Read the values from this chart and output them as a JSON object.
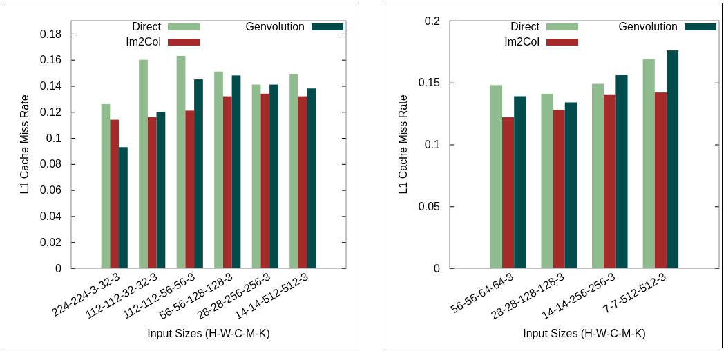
{
  "chart_data": [
    {
      "type": "bar",
      "xlabel": "Input Sizes (H-W-C-M-K)",
      "ylabel": "L1 Cache Miss Rate",
      "categories": [
        "224-224-3-32-3",
        "112-112-32-32-3",
        "112-112-56-56-3",
        "56-56-128-128-3",
        "28-28-256-256-3",
        "14-14-512-512-3"
      ],
      "series": [
        {
          "name": "Direct",
          "color": "#8fbc8f",
          "values": [
            0.126,
            0.16,
            0.163,
            0.151,
            0.141,
            0.149
          ]
        },
        {
          "name": "Im2Col",
          "color": "#a52a2a",
          "values": [
            0.114,
            0.116,
            0.121,
            0.132,
            0.134,
            0.132
          ]
        },
        {
          "name": "Genvolution",
          "color": "#004c4c",
          "values": [
            0.093,
            0.12,
            0.145,
            0.148,
            0.141,
            0.138
          ]
        }
      ],
      "ylim": [
        0,
        0.19
      ],
      "yticks": [
        0,
        0.02,
        0.04,
        0.06,
        0.08,
        0.1,
        0.12,
        0.14,
        0.16,
        0.18
      ],
      "legend": "top",
      "grid": false
    },
    {
      "type": "bar",
      "xlabel": "Input Sizes (H-W-C-M-K)",
      "ylabel": "L1 Cache Miss Rate",
      "categories": [
        "56-56-64-64-3",
        "28-28-128-128-3",
        "14-14-256-256-3",
        "7-7-512-512-3"
      ],
      "series": [
        {
          "name": "Direct",
          "color": "#8fbc8f",
          "values": [
            0.148,
            0.141,
            0.149,
            0.169
          ]
        },
        {
          "name": "Im2Col",
          "color": "#a52a2a",
          "values": [
            0.122,
            0.128,
            0.14,
            0.142
          ]
        },
        {
          "name": "Genvolution",
          "color": "#004c4c",
          "values": [
            0.139,
            0.134,
            0.156,
            0.176
          ]
        }
      ],
      "ylim": [
        0,
        0.2
      ],
      "yticks": [
        0,
        0.05,
        0.1,
        0.15,
        0.2
      ],
      "legend": "top",
      "grid": false
    }
  ]
}
